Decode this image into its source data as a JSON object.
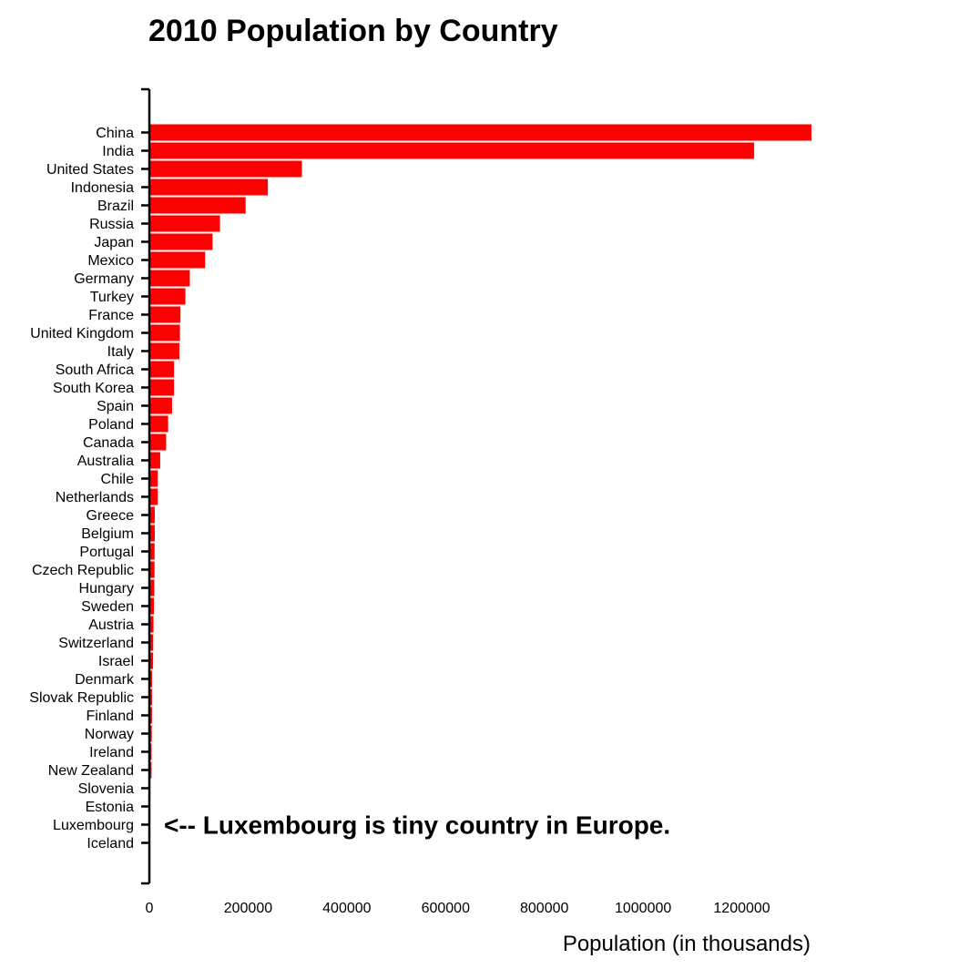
{
  "chart_data": {
    "type": "bar",
    "orientation": "horizontal",
    "title": "2010 Population by Country",
    "xlabel": "Population (in thousands)",
    "ylabel": "",
    "xlim": [
      0,
      1341000
    ],
    "x_ticks": [
      0,
      200000,
      400000,
      600000,
      800000,
      1000000,
      1200000
    ],
    "grid": false,
    "bar_color": "#ff0000",
    "categories": [
      "China",
      "India",
      "United States",
      "Indonesia",
      "Brazil",
      "Russia",
      "Japan",
      "Mexico",
      "Germany",
      "Turkey",
      "France",
      "United Kingdom",
      "Italy",
      "South Africa",
      "South Korea",
      "Spain",
      "Poland",
      "Canada",
      "Australia",
      "Chile",
      "Netherlands",
      "Greece",
      "Belgium",
      "Portugal",
      "Czech Republic",
      "Hungary",
      "Sweden",
      "Austria",
      "Switzerland",
      "Israel",
      "Denmark",
      "Slovak Republic",
      "Finland",
      "Norway",
      "Ireland",
      "New Zealand",
      "Slovenia",
      "Estonia",
      "Luxembourg",
      "Iceland"
    ],
    "values": [
      1341000,
      1225000,
      309000,
      240000,
      195000,
      143000,
      128000,
      113000,
      82000,
      73000,
      63000,
      62000,
      61000,
      50000,
      50000,
      46000,
      38000,
      34000,
      22000,
      17000,
      17000,
      11000,
      11000,
      10600,
      10500,
      10000,
      9400,
      8400,
      7800,
      7600,
      5500,
      5400,
      5400,
      4900,
      4500,
      4400,
      2000,
      1300,
      500,
      300
    ],
    "annotations": [
      {
        "category": "Luxembourg",
        "text": "<-- Luxembourg is tiny country in Europe."
      }
    ]
  }
}
